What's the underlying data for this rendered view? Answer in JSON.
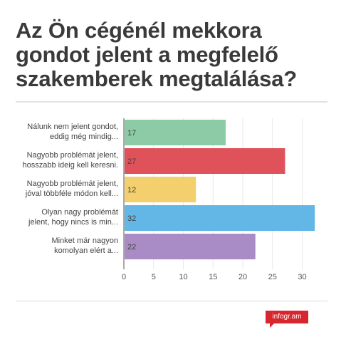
{
  "title": "Az Ön cégénél mekkora gondot jelent a megfelelő szakemberek megtalálása?",
  "logo_text": "infogr.am",
  "chart_data": {
    "type": "bar",
    "orientation": "horizontal",
    "categories": [
      [
        "Nálunk nem jelent gondot,",
        "eddig még mindig..."
      ],
      [
        "Nagyobb problémát jelent,",
        "hosszabb ideig kell keresni."
      ],
      [
        "Nagyobb problémát jelent,",
        "jóval többféle módon kell..."
      ],
      [
        "Olyan nagy problémát",
        "jelent, hogy nincs is min..."
      ],
      [
        "Minket már nagyon",
        "komolyan elért a..."
      ]
    ],
    "values": [
      17,
      27,
      12,
      32,
      22
    ],
    "colors": [
      "#8ccba6",
      "#e0525a",
      "#f3cf6d",
      "#63b7e6",
      "#a98cc5"
    ],
    "xlim": [
      0,
      34
    ],
    "xticks": [
      0,
      5,
      10,
      15,
      20,
      25,
      30
    ],
    "grid": true
  }
}
